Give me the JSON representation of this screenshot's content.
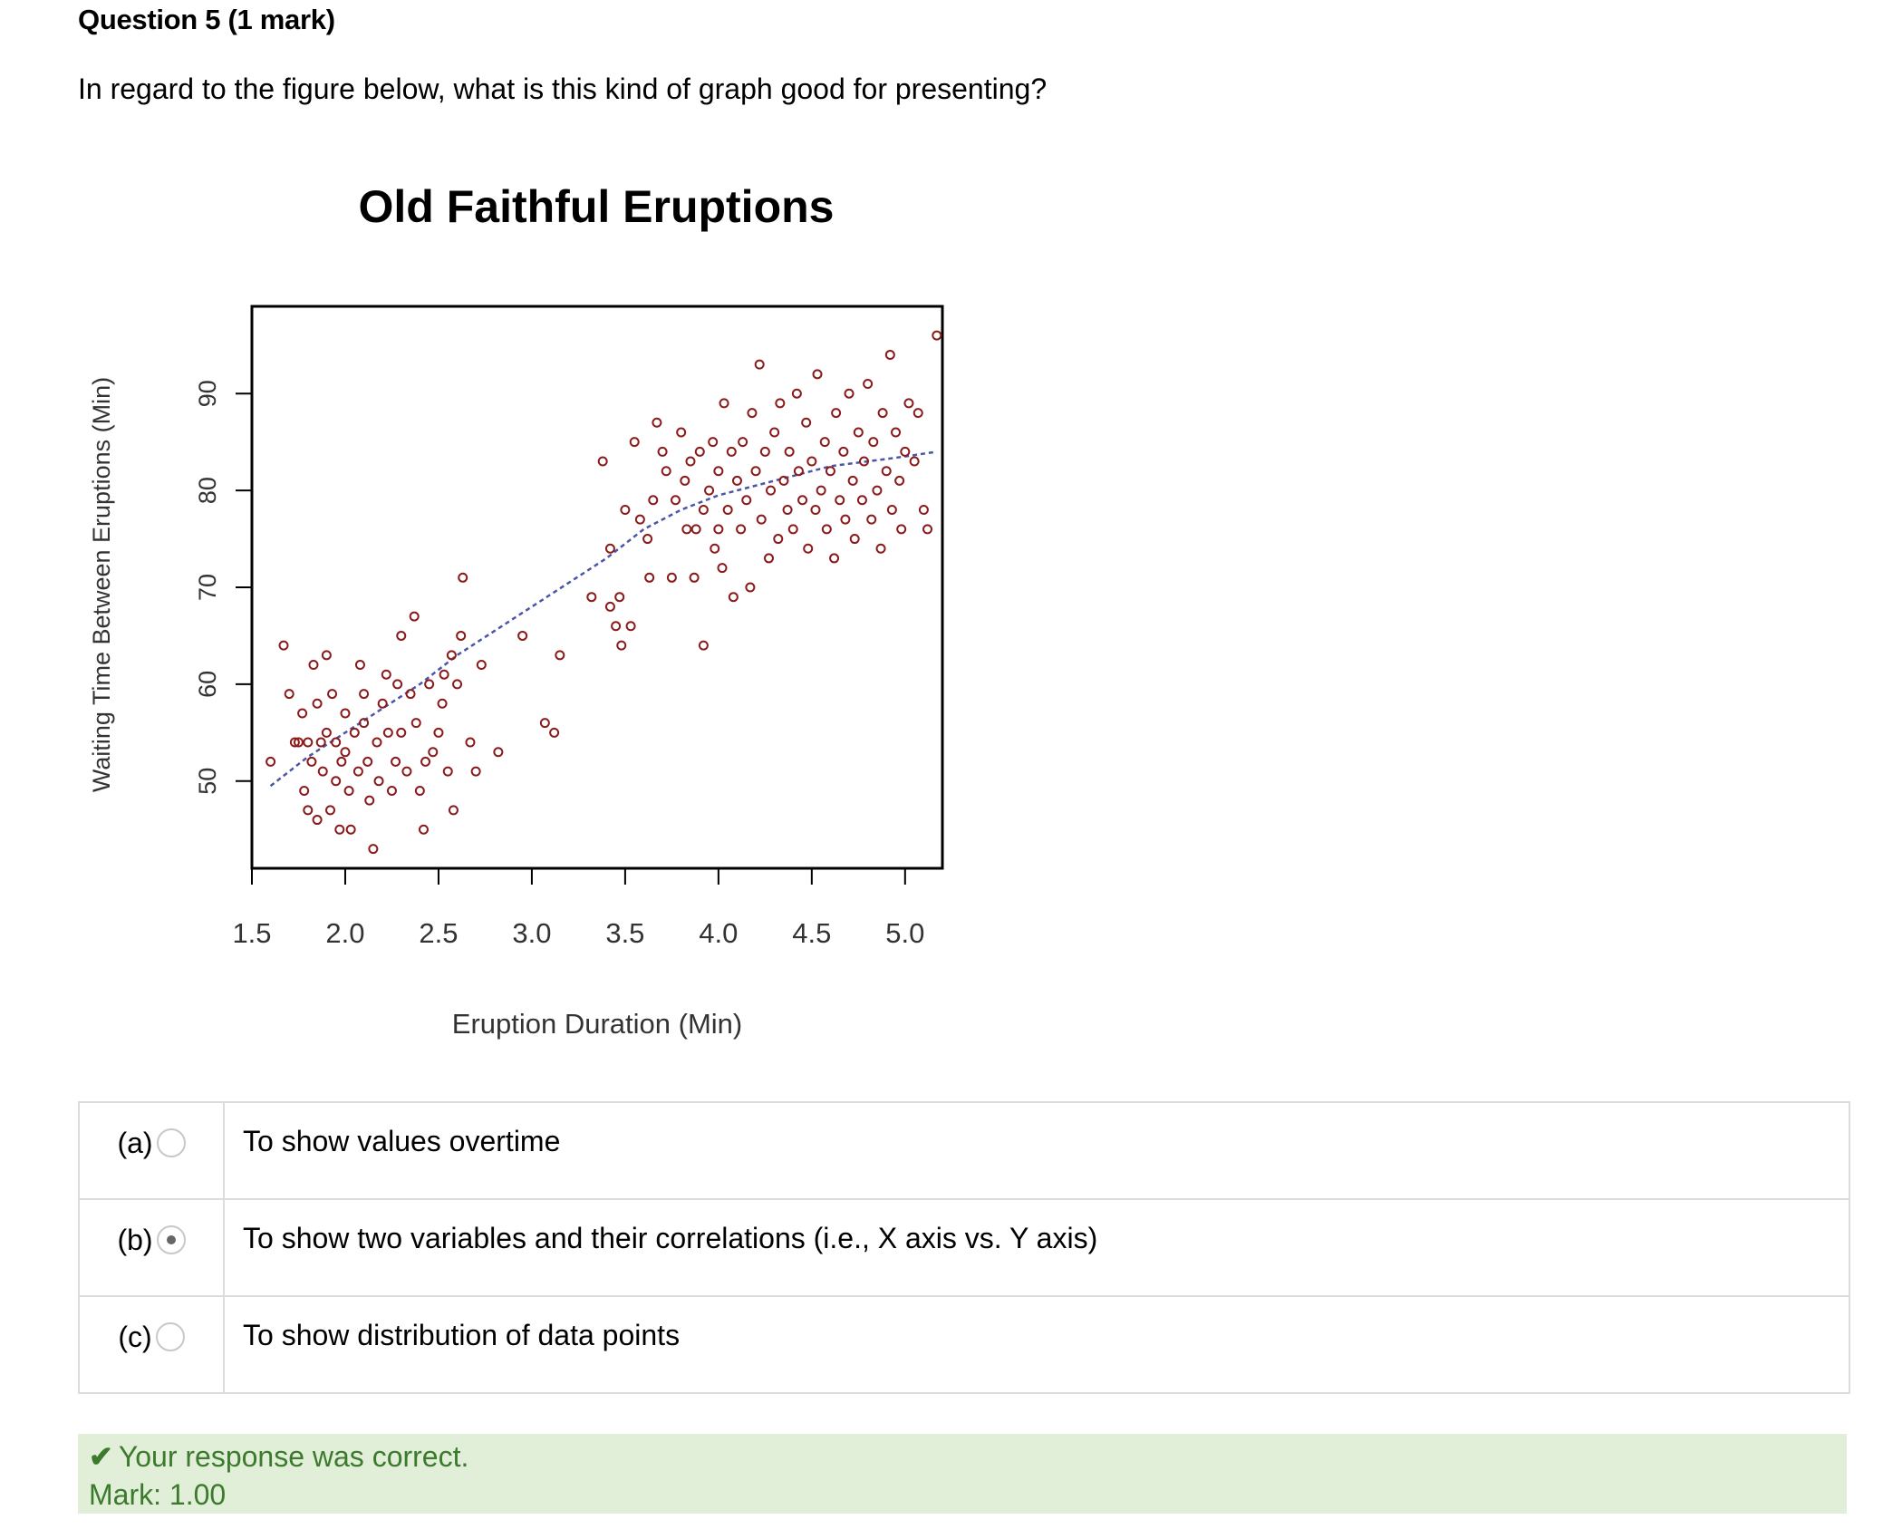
{
  "question": {
    "title": "Question 5 (1 mark)",
    "prompt": "In regard to the figure below, what is this kind of graph good for presenting?"
  },
  "chart_data": {
    "type": "scatter",
    "title": "Old Faithful Eruptions",
    "xlabel": "Eruption Duration (Min)",
    "ylabel": "Waiting Time Between Eruptions (Min)",
    "x_ticks": [
      "1.5",
      "2.0",
      "2.5",
      "3.0",
      "3.5",
      "4.0",
      "4.5",
      "5.0"
    ],
    "y_ticks": [
      "50",
      "60",
      "70",
      "80",
      "90"
    ],
    "xlim": [
      1.5,
      5.2
    ],
    "ylim": [
      41,
      99
    ],
    "grid": false,
    "point_color": "#8b1a1a",
    "trend_color": "#4a55a8",
    "points": [
      [
        1.6,
        52
      ],
      [
        1.67,
        64
      ],
      [
        1.7,
        59
      ],
      [
        1.73,
        54
      ],
      [
        1.75,
        54
      ],
      [
        1.77,
        57
      ],
      [
        1.78,
        49
      ],
      [
        1.8,
        47
      ],
      [
        1.8,
        54
      ],
      [
        1.82,
        52
      ],
      [
        1.83,
        62
      ],
      [
        1.85,
        58
      ],
      [
        1.85,
        46
      ],
      [
        1.87,
        54
      ],
      [
        1.88,
        51
      ],
      [
        1.9,
        63
      ],
      [
        1.9,
        55
      ],
      [
        1.92,
        47
      ],
      [
        1.93,
        59
      ],
      [
        1.95,
        54
      ],
      [
        1.95,
        50
      ],
      [
        1.97,
        45
      ],
      [
        1.98,
        52
      ],
      [
        2.0,
        57
      ],
      [
        2.0,
        53
      ],
      [
        2.02,
        49
      ],
      [
        2.03,
        45
      ],
      [
        2.05,
        55
      ],
      [
        2.07,
        51
      ],
      [
        2.08,
        62
      ],
      [
        2.1,
        59
      ],
      [
        2.1,
        56
      ],
      [
        2.12,
        52
      ],
      [
        2.13,
        48
      ],
      [
        2.15,
        43
      ],
      [
        2.17,
        54
      ],
      [
        2.18,
        50
      ],
      [
        2.2,
        58
      ],
      [
        2.22,
        61
      ],
      [
        2.23,
        55
      ],
      [
        2.25,
        49
      ],
      [
        2.27,
        52
      ],
      [
        2.28,
        60
      ],
      [
        2.3,
        55
      ],
      [
        2.3,
        65
      ],
      [
        2.33,
        51
      ],
      [
        2.35,
        59
      ],
      [
        2.37,
        67
      ],
      [
        2.38,
        56
      ],
      [
        2.4,
        49
      ],
      [
        2.42,
        45
      ],
      [
        2.43,
        52
      ],
      [
        2.45,
        60
      ],
      [
        2.47,
        53
      ],
      [
        2.5,
        55
      ],
      [
        2.52,
        58
      ],
      [
        2.53,
        61
      ],
      [
        2.55,
        51
      ],
      [
        2.57,
        63
      ],
      [
        2.58,
        47
      ],
      [
        2.6,
        60
      ],
      [
        2.62,
        65
      ],
      [
        2.63,
        71
      ],
      [
        2.67,
        54
      ],
      [
        2.7,
        51
      ],
      [
        2.73,
        62
      ],
      [
        2.82,
        53
      ],
      [
        2.95,
        65
      ],
      [
        3.07,
        56
      ],
      [
        3.12,
        55
      ],
      [
        3.15,
        63
      ],
      [
        3.32,
        69
      ],
      [
        3.38,
        83
      ],
      [
        3.42,
        74
      ],
      [
        3.42,
        68
      ],
      [
        3.45,
        66
      ],
      [
        3.47,
        69
      ],
      [
        3.48,
        64
      ],
      [
        3.5,
        78
      ],
      [
        3.53,
        66
      ],
      [
        3.55,
        85
      ],
      [
        3.58,
        77
      ],
      [
        3.62,
        75
      ],
      [
        3.63,
        71
      ],
      [
        3.65,
        79
      ],
      [
        3.67,
        87
      ],
      [
        3.7,
        84
      ],
      [
        3.72,
        82
      ],
      [
        3.75,
        71
      ],
      [
        3.77,
        79
      ],
      [
        3.8,
        86
      ],
      [
        3.82,
        81
      ],
      [
        3.83,
        76
      ],
      [
        3.85,
        83
      ],
      [
        3.87,
        71
      ],
      [
        3.88,
        76
      ],
      [
        3.9,
        84
      ],
      [
        3.92,
        78
      ],
      [
        3.92,
        64
      ],
      [
        3.95,
        80
      ],
      [
        3.97,
        85
      ],
      [
        3.98,
        74
      ],
      [
        4.0,
        82
      ],
      [
        4.0,
        76
      ],
      [
        4.02,
        72
      ],
      [
        4.03,
        89
      ],
      [
        4.05,
        78
      ],
      [
        4.07,
        84
      ],
      [
        4.08,
        69
      ],
      [
        4.1,
        81
      ],
      [
        4.12,
        76
      ],
      [
        4.13,
        85
      ],
      [
        4.15,
        79
      ],
      [
        4.17,
        70
      ],
      [
        4.18,
        88
      ],
      [
        4.2,
        82
      ],
      [
        4.22,
        93
      ],
      [
        4.23,
        77
      ],
      [
        4.25,
        84
      ],
      [
        4.27,
        73
      ],
      [
        4.28,
        80
      ],
      [
        4.3,
        86
      ],
      [
        4.32,
        75
      ],
      [
        4.33,
        89
      ],
      [
        4.35,
        81
      ],
      [
        4.37,
        78
      ],
      [
        4.38,
        84
      ],
      [
        4.4,
        76
      ],
      [
        4.42,
        90
      ],
      [
        4.43,
        82
      ],
      [
        4.45,
        79
      ],
      [
        4.47,
        87
      ],
      [
        4.48,
        74
      ],
      [
        4.5,
        83
      ],
      [
        4.52,
        78
      ],
      [
        4.53,
        92
      ],
      [
        4.55,
        80
      ],
      [
        4.57,
        85
      ],
      [
        4.58,
        76
      ],
      [
        4.6,
        82
      ],
      [
        4.62,
        73
      ],
      [
        4.63,
        88
      ],
      [
        4.65,
        79
      ],
      [
        4.67,
        84
      ],
      [
        4.68,
        77
      ],
      [
        4.7,
        90
      ],
      [
        4.72,
        81
      ],
      [
        4.73,
        75
      ],
      [
        4.75,
        86
      ],
      [
        4.77,
        79
      ],
      [
        4.78,
        83
      ],
      [
        4.8,
        91
      ],
      [
        4.82,
        77
      ],
      [
        4.83,
        85
      ],
      [
        4.85,
        80
      ],
      [
        4.87,
        74
      ],
      [
        4.88,
        88
      ],
      [
        4.9,
        82
      ],
      [
        4.92,
        94
      ],
      [
        4.93,
        78
      ],
      [
        4.95,
        86
      ],
      [
        4.97,
        81
      ],
      [
        4.98,
        76
      ],
      [
        5.0,
        84
      ],
      [
        5.02,
        89
      ],
      [
        5.05,
        83
      ],
      [
        5.07,
        88
      ],
      [
        5.1,
        78
      ],
      [
        5.12,
        76
      ],
      [
        5.17,
        96
      ]
    ],
    "trend": [
      [
        1.6,
        49.5
      ],
      [
        1.8,
        52.5
      ],
      [
        2.0,
        55
      ],
      [
        2.2,
        57.5
      ],
      [
        2.4,
        60
      ],
      [
        2.6,
        63
      ],
      [
        2.8,
        65.5
      ],
      [
        3.0,
        68
      ],
      [
        3.2,
        70.5
      ],
      [
        3.4,
        73
      ],
      [
        3.6,
        76
      ],
      [
        3.8,
        78
      ],
      [
        4.0,
        79.5
      ],
      [
        4.2,
        80.5
      ],
      [
        4.4,
        81.5
      ],
      [
        4.6,
        82.5
      ],
      [
        4.8,
        83
      ],
      [
        5.0,
        83.5
      ],
      [
        5.17,
        84
      ]
    ]
  },
  "answers": [
    {
      "key": "(a)",
      "text": "To show values overtime",
      "selected": false
    },
    {
      "key": "(b)",
      "text": "To show two variables and their correlations (i.e., X axis vs. Y axis)",
      "selected": true
    },
    {
      "key": "(c)",
      "text": "To show distribution of data points",
      "selected": false
    }
  ],
  "feedback": {
    "status": "Your response was correct.",
    "mark": "Mark: 1.00"
  }
}
